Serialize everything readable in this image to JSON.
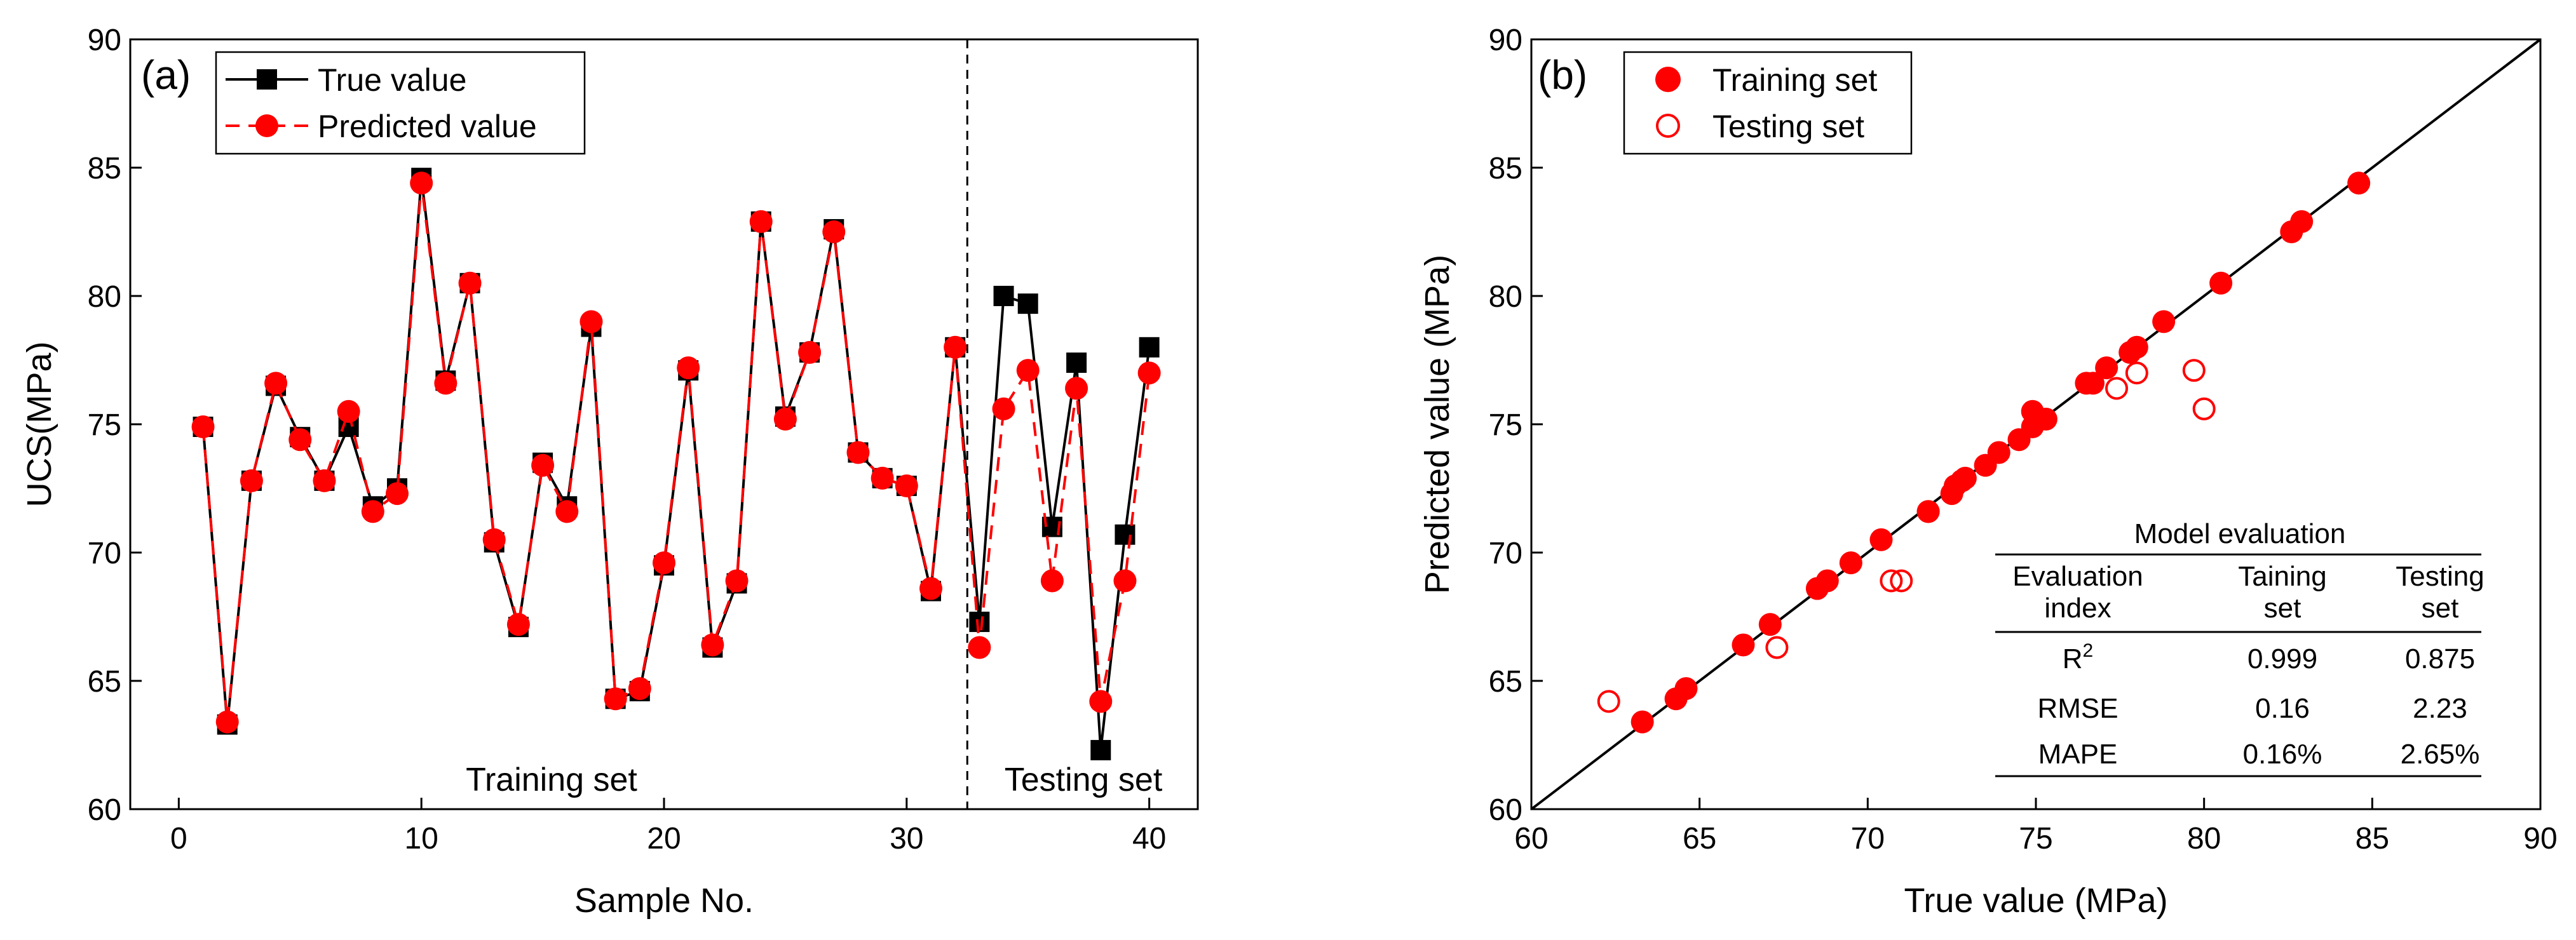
{
  "chart_data": [
    {
      "type": "line",
      "panel_label": "(a)",
      "xlabel": "Sample No.",
      "ylabel": "UCS(MPa)",
      "xlim": [
        -2,
        42
      ],
      "ylim": [
        60,
        90
      ],
      "xticks": [
        0,
        10,
        20,
        30,
        40
      ],
      "yticks": [
        60,
        65,
        70,
        75,
        80,
        85,
        90
      ],
      "divider_x": 32.5,
      "region_labels": [
        "Training set",
        "Testing set"
      ],
      "series": [
        {
          "name": "True value",
          "marker": "square",
          "color": "#000000",
          "x": [
            1,
            2,
            3,
            4,
            5,
            6,
            7,
            8,
            9,
            10,
            11,
            12,
            13,
            14,
            15,
            16,
            17,
            18,
            19,
            20,
            21,
            22,
            23,
            24,
            25,
            26,
            27,
            28,
            29,
            30,
            31,
            32,
            33,
            34,
            35,
            36,
            37,
            38,
            39,
            40
          ],
          "y": [
            74.9,
            63.3,
            72.8,
            76.5,
            74.5,
            72.8,
            74.9,
            71.8,
            72.5,
            84.6,
            76.7,
            80.5,
            70.4,
            67.1,
            73.5,
            71.8,
            78.8,
            64.3,
            64.6,
            69.5,
            77.1,
            66.3,
            68.8,
            82.9,
            75.3,
            77.8,
            82.6,
            73.9,
            72.9,
            72.6,
            68.5,
            78.0,
            67.3,
            80.0,
            79.7,
            71.0,
            77.4,
            62.3,
            70.7,
            78.0
          ]
        },
        {
          "name": "Predicted value",
          "marker": "circle",
          "color": "#ff0000",
          "x": [
            1,
            2,
            3,
            4,
            5,
            6,
            7,
            8,
            9,
            10,
            11,
            12,
            13,
            14,
            15,
            16,
            17,
            18,
            19,
            20,
            21,
            22,
            23,
            24,
            25,
            26,
            27,
            28,
            29,
            30,
            31,
            32,
            33,
            34,
            35,
            36,
            37,
            38,
            39,
            40
          ],
          "y": [
            74.9,
            63.4,
            72.8,
            76.6,
            74.4,
            72.8,
            75.5,
            71.6,
            72.3,
            84.4,
            76.6,
            80.5,
            70.5,
            67.2,
            73.4,
            71.6,
            79.0,
            64.3,
            64.7,
            69.6,
            77.2,
            66.4,
            68.9,
            82.9,
            75.2,
            77.8,
            82.5,
            73.9,
            72.9,
            72.6,
            68.6,
            78.0,
            66.3,
            75.6,
            77.1,
            68.9,
            76.4,
            64.2,
            68.9,
            77.0
          ]
        }
      ]
    },
    {
      "type": "scatter",
      "panel_label": "(b)",
      "xlabel": "True value (MPa)",
      "ylabel": "Predicted value (MPa)",
      "xlim": [
        60,
        90
      ],
      "ylim": [
        60,
        90
      ],
      "xticks": [
        60,
        65,
        70,
        75,
        80,
        85,
        90
      ],
      "yticks": [
        60,
        65,
        70,
        75,
        80,
        85,
        90
      ],
      "reference_line": "y = x",
      "series": [
        {
          "name": "Training set",
          "marker": "filled-circle",
          "color": "#ff0000",
          "x": [
            74.9,
            63.3,
            72.8,
            76.5,
            74.5,
            72.8,
            74.9,
            71.8,
            72.5,
            84.6,
            76.7,
            80.5,
            70.4,
            67.1,
            73.5,
            71.8,
            78.8,
            64.3,
            64.6,
            69.5,
            77.1,
            66.3,
            68.8,
            82.9,
            75.3,
            77.8,
            82.6,
            73.9,
            72.9,
            72.6,
            68.5,
            78.0
          ],
          "y": [
            74.9,
            63.4,
            72.8,
            76.6,
            74.4,
            72.8,
            75.5,
            71.6,
            72.3,
            84.4,
            76.6,
            80.5,
            70.5,
            67.2,
            73.4,
            71.6,
            79.0,
            64.3,
            64.7,
            69.6,
            77.2,
            66.4,
            68.9,
            82.9,
            75.2,
            77.8,
            82.5,
            73.9,
            72.9,
            72.6,
            68.6,
            78.0
          ]
        },
        {
          "name": "Testing set",
          "marker": "open-circle",
          "color": "#ff0000",
          "x": [
            67.3,
            80.0,
            79.7,
            71.0,
            77.4,
            62.3,
            70.7,
            78.0
          ],
          "y": [
            66.3,
            75.6,
            77.1,
            68.9,
            76.4,
            64.2,
            68.9,
            77.0
          ]
        }
      ],
      "table": {
        "title": "Model evaluation",
        "headers": [
          [
            "Evaluation",
            "index"
          ],
          [
            "Taining",
            "set"
          ],
          [
            "Testing",
            "set"
          ]
        ],
        "rows": [
          {
            "metric": "R",
            "metric_sup": "2",
            "train": "0.999",
            "test": "0.875"
          },
          {
            "metric": "RMSE",
            "metric_sup": "",
            "train": "0.16",
            "test": "2.23"
          },
          {
            "metric": "MAPE",
            "metric_sup": "",
            "train": "0.16%",
            "test": "2.65%"
          }
        ]
      }
    }
  ]
}
